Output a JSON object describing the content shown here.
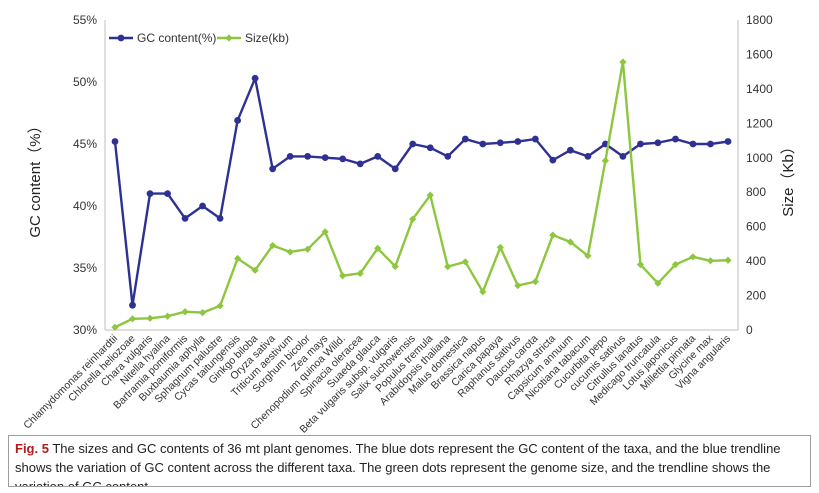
{
  "chart_data": {
    "type": "line",
    "categories": [
      "Chlamydomonas reinhardtii",
      "Chlorella heliozoae",
      "Chara vulgaris",
      "Nitella hyalina",
      "Bartramia pomiformis",
      "Buxbaumia aphylla",
      "Sphagnum palustre",
      "Cycas taitungensis",
      "Ginkgo biloba",
      "Oryza sativa",
      "Triticum aestivum",
      "Sorghum bicolor",
      "Zea mays",
      "Chenopodium quinoa Willd.",
      "Spinacia oleracea",
      "Suaeda glauca",
      "Beta vulgaris subsp. vulgaris",
      "Salix suchowensis",
      "Populus tremula",
      "Arabidopsis thaliana",
      "Malus domestica",
      "Brassica napus",
      "Carica papaya",
      "Raphanus sativus",
      "Daucus carota",
      "Rhazya stricta",
      "Capsicum annuum",
      "Nicotiana tabacum",
      "Cucurbita pepo",
      "cucumis sativus",
      "Citrullus lanatus",
      "Medicago truncatula",
      "Lotus japonicus",
      "Millettia pinnata",
      "Glycine max",
      "Vigna angularis"
    ],
    "series": [
      {
        "name": "GC content(%)",
        "axis": "left",
        "color": "#2e3192",
        "values": [
          45.2,
          32.0,
          41.0,
          41.0,
          39.0,
          40.0,
          39.0,
          46.9,
          50.3,
          43.0,
          44.0,
          44.0,
          43.9,
          43.8,
          43.4,
          44.0,
          43.0,
          45.0,
          44.7,
          44.0,
          45.4,
          45.0,
          45.1,
          45.2,
          45.4,
          43.7,
          44.5,
          44.0,
          45.0,
          44.0,
          45.0,
          45.1,
          45.4,
          45.0,
          45.0,
          45.2
        ]
      },
      {
        "name": "Size(kb)",
        "axis": "right",
        "color": "#8dc63f",
        "values": [
          16,
          65,
          68,
          80,
          106,
          101,
          140,
          415,
          347,
          491,
          453,
          469,
          570,
          315,
          329,
          474,
          369,
          644,
          783,
          368,
          396,
          222,
          480,
          258,
          281,
          551,
          511,
          431,
          983,
          1556,
          380,
          271,
          380,
          425,
          402,
          405
        ]
      }
    ],
    "ylabel": "GC content（%）",
    "y2label": "Size（Kb）",
    "ylim": [
      30,
      55
    ],
    "y2lim": [
      0,
      1800
    ],
    "yticks": [
      "30%",
      "35%",
      "40%",
      "45%",
      "50%",
      "55%"
    ],
    "y2ticks": [
      "0",
      "200",
      "400",
      "600",
      "800",
      "1000",
      "1200",
      "1400",
      "1600",
      "1800"
    ],
    "legend_position": "top-left",
    "grid": false
  },
  "caption": {
    "label": "Fig. 5",
    "text": " The sizes and GC contents of 36 mt plant genomes. The blue dots represent the GC content of the taxa, and the blue trendline shows the variation of GC content across the different taxa. The green dots represent the genome size, and the trendline shows the variation of GC content"
  }
}
